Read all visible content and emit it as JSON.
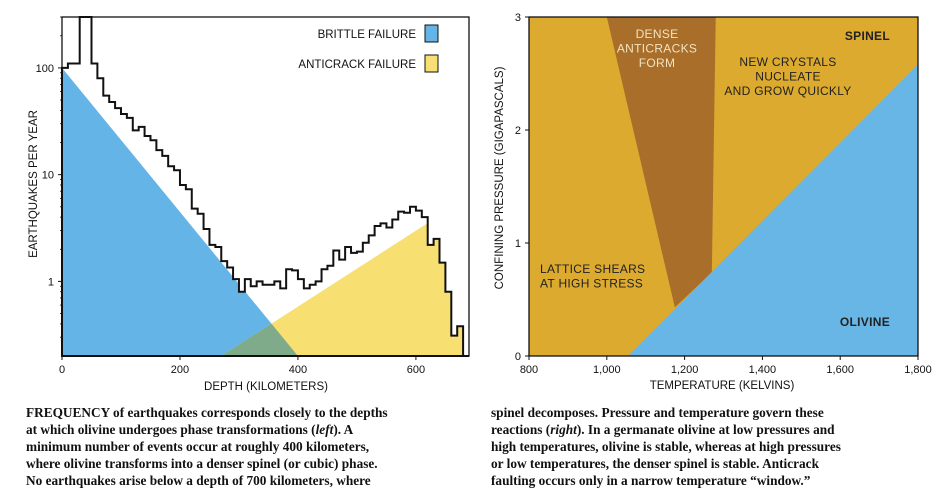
{
  "colors": {
    "brittle": "#64b4e8",
    "anticrack": "#f7df72",
    "overlap": "#7fab8b",
    "spinel_region": "#dcaa2e",
    "window_region": "#a86e2a",
    "olivine_region": "#68b6e6"
  },
  "chart_data": [
    {
      "type": "area",
      "ylabel": "EARTHQUAKES PER YEAR",
      "xlabel": "DEPTH (KILOMETERS)",
      "yscale": "log",
      "xlim": [
        0,
        690
      ],
      "ylim": [
        0.2,
        300
      ],
      "xticks": [
        "0",
        "200",
        "400",
        "600"
      ],
      "yticks": [
        "1",
        "10",
        "100"
      ],
      "legend": [
        {
          "label": "BRITTLE FAILURE",
          "color": "brittle"
        },
        {
          "label": "ANTICRACK FAILURE",
          "color": "anticrack"
        }
      ],
      "histogram": {
        "bin_width": 10,
        "x": [
          0,
          10,
          20,
          30,
          40,
          50,
          60,
          70,
          80,
          90,
          100,
          110,
          120,
          130,
          140,
          150,
          160,
          170,
          180,
          190,
          200,
          210,
          220,
          230,
          240,
          250,
          260,
          270,
          280,
          290,
          300,
          310,
          320,
          330,
          340,
          350,
          360,
          370,
          380,
          390,
          400,
          410,
          420,
          430,
          440,
          450,
          460,
          470,
          480,
          490,
          500,
          510,
          520,
          530,
          540,
          550,
          560,
          570,
          580,
          590,
          600,
          610,
          620,
          630,
          640,
          650,
          660,
          670,
          680
        ],
        "values": [
          100,
          110,
          110,
          300,
          300,
          110,
          80,
          55,
          48,
          42,
          37,
          34,
          26,
          28,
          23,
          21,
          17,
          15,
          12,
          11,
          8,
          7.3,
          4.8,
          4.3,
          3.1,
          2.2,
          2.1,
          1.55,
          1.35,
          1.05,
          0.8,
          1.05,
          0.9,
          1.0,
          0.93,
          0.93,
          1.0,
          0.86,
          1.3,
          1.27,
          1.05,
          0.86,
          0.93,
          1.0,
          1.3,
          1.4,
          1.95,
          1.6,
          2.1,
          1.85,
          1.9,
          2.3,
          2.7,
          3.3,
          3.5,
          3.2,
          3.8,
          4.5,
          4.4,
          5.0,
          4.6,
          4.0,
          2.2,
          2.5,
          1.5,
          0.8,
          0.31,
          0.38,
          0
        ]
      },
      "brittle_fit": {
        "x": [
          0,
          400
        ],
        "y_top": [
          100,
          0.2
        ]
      },
      "anticrack_fit": {
        "x": [
          270,
          650
        ],
        "y_top": [
          0.2,
          4.5
        ]
      }
    },
    {
      "type": "phase-diagram",
      "xlabel": "TEMPERATURE (KELVINS)",
      "ylabel": "CONFINING PRESSURE (GIGAPASCALS)",
      "xlim": [
        800,
        1800
      ],
      "ylim": [
        0,
        3
      ],
      "xticks": [
        "800",
        "1,000",
        "1,200",
        "1,400",
        "1,600",
        "1,800"
      ],
      "yticks": [
        "0",
        "1",
        "2",
        "3"
      ],
      "phase_boundary": {
        "x": [
          1055,
          1800
        ],
        "y": [
          0,
          2.58
        ]
      },
      "window": {
        "top_x": [
          1000,
          1280
        ],
        "bottom_x": [
          1175,
          1270
        ],
        "bottom_y": [
          0.43,
          0.74
        ]
      },
      "regions": [
        {
          "label_lines": [
            "SPINEL"
          ],
          "bold": true
        },
        {
          "label_lines": [
            "OLIVINE"
          ],
          "bold": true
        },
        {
          "label_lines": [
            "DENSE",
            "ANTICRACKS",
            "FORM"
          ]
        },
        {
          "label_lines": [
            "NEW CRYSTALS",
            "NUCLEATE",
            "AND GROW QUICKLY"
          ]
        },
        {
          "label_lines": [
            "LATTICE SHEARS",
            "AT HIGH STRESS"
          ]
        }
      ]
    }
  ],
  "caption_left": [
    "FREQUENCY of earthquakes corresponds closely to the depths",
    "at which olivine undergoes phase transformations (left). A",
    "minimum number of events occur at roughly 400 kilometers,",
    "where olivine transforms into a denser spinel (or cubic) phase.",
    "No earthquakes arise below a depth of 700 kilometers, where"
  ],
  "caption_right": [
    "spinel decomposes. Pressure and temperature govern these",
    "reactions (right). In a germanate olivine at low pressures and",
    "high temperatures, olivine is stable, whereas at high pressures",
    "or low temperatures, the denser spinel is stable. Anticrack",
    "faulting occurs only in a narrow temperature “window.”"
  ]
}
